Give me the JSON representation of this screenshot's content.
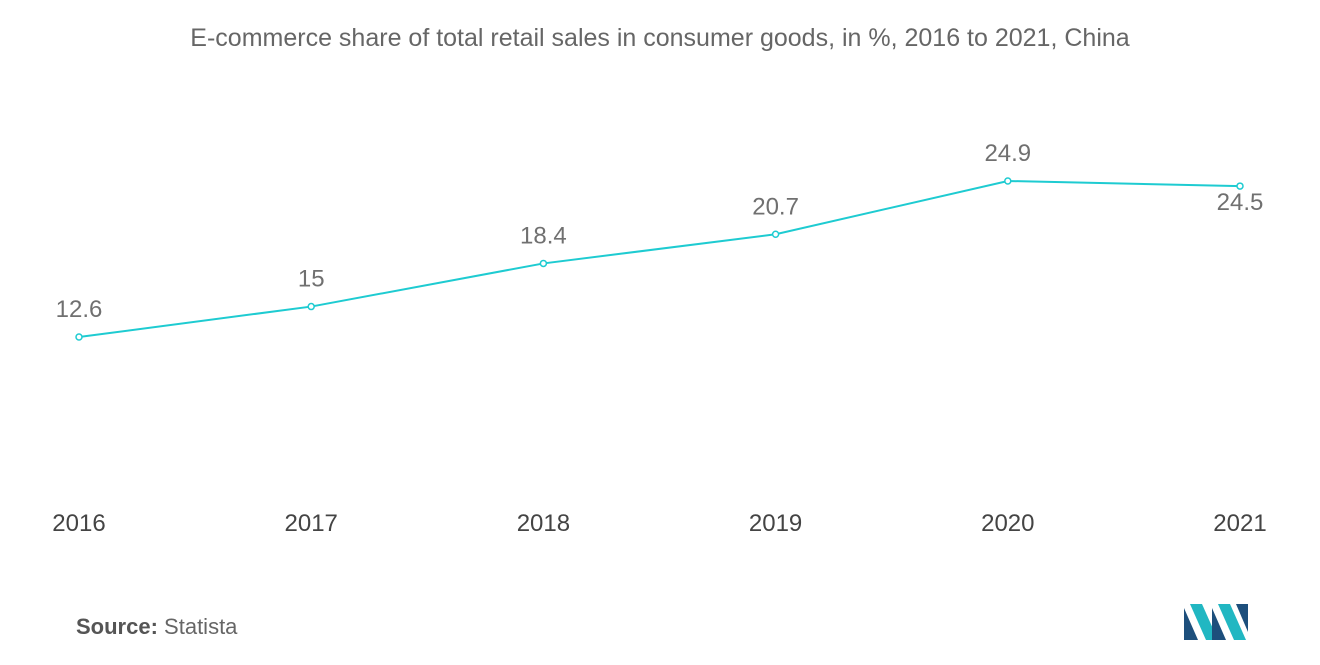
{
  "chart_data": {
    "type": "line",
    "title": "E-commerce share of total retail sales in consumer goods, in %, 2016 to 2021, China",
    "categories": [
      "2016",
      "2017",
      "2018",
      "2019",
      "2020",
      "2021"
    ],
    "series": [
      {
        "values": [
          12.6,
          15,
          18.4,
          20.7,
          24.9,
          24.5
        ]
      }
    ],
    "data_labels": [
      "12.6",
      "15",
      "18.4",
      "20.7",
      "24.9",
      "24.5"
    ],
    "xlabel": "",
    "ylabel": "",
    "ylim": [
      0,
      30
    ],
    "grid": false,
    "legend": "none",
    "line_color": "#1ecbd1"
  },
  "source": {
    "label": "Source:",
    "value": "Statista"
  },
  "logo": {
    "icon": "mordor-intelligence-logo-icon",
    "colors": [
      "#1d4f7c",
      "#21b7c2"
    ]
  }
}
